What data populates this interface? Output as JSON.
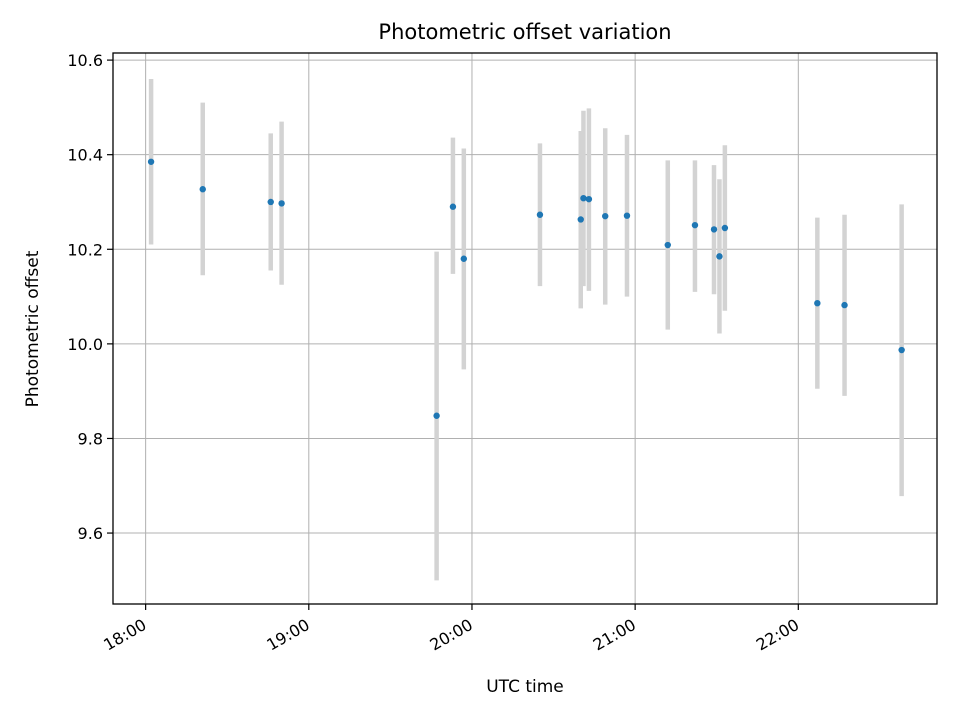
{
  "chart_data": {
    "type": "scatter",
    "title": "Photometric offset variation",
    "xlabel": "UTC time",
    "ylabel": "Photometric offset",
    "x_axis_kind": "time",
    "xlim": [
      "17:48",
      "22:51"
    ],
    "ylim": [
      9.45,
      10.615
    ],
    "xticks": [
      "18:00",
      "19:00",
      "20:00",
      "21:00",
      "22:00"
    ],
    "yticks": [
      "9.6",
      "9.8",
      "10.0",
      "10.2",
      "10.4",
      "10.6"
    ],
    "grid": true,
    "point_color": "#1f77b4",
    "errorbar_color": "#d3d3d3",
    "points": [
      {
        "x": "18:02",
        "y": 10.385,
        "ylow": 10.21,
        "yhigh": 10.56
      },
      {
        "x": "18:21",
        "y": 10.327,
        "ylow": 10.145,
        "yhigh": 10.51
      },
      {
        "x": "18:46",
        "y": 10.3,
        "ylow": 10.155,
        "yhigh": 10.445
      },
      {
        "x": "18:50",
        "y": 10.297,
        "ylow": 10.125,
        "yhigh": 10.47
      },
      {
        "x": "19:47",
        "y": 9.848,
        "ylow": 9.5,
        "yhigh": 10.195
      },
      {
        "x": "19:53",
        "y": 10.29,
        "ylow": 10.148,
        "yhigh": 10.436
      },
      {
        "x": "19:57",
        "y": 10.18,
        "ylow": 9.946,
        "yhigh": 10.413
      },
      {
        "x": "20:25",
        "y": 10.273,
        "ylow": 10.122,
        "yhigh": 10.424
      },
      {
        "x": "20:40",
        "y": 10.263,
        "ylow": 10.075,
        "yhigh": 10.45
      },
      {
        "x": "20:41",
        "y": 10.308,
        "ylow": 10.122,
        "yhigh": 10.493
      },
      {
        "x": "20:43",
        "y": 10.306,
        "ylow": 10.112,
        "yhigh": 10.498
      },
      {
        "x": "20:49",
        "y": 10.27,
        "ylow": 10.083,
        "yhigh": 10.456
      },
      {
        "x": "20:57",
        "y": 10.271,
        "ylow": 10.1,
        "yhigh": 10.442
      },
      {
        "x": "21:12",
        "y": 10.209,
        "ylow": 10.03,
        "yhigh": 10.388
      },
      {
        "x": "21:22",
        "y": 10.251,
        "ylow": 10.11,
        "yhigh": 10.388
      },
      {
        "x": "21:29",
        "y": 10.242,
        "ylow": 10.105,
        "yhigh": 10.378
      },
      {
        "x": "21:31",
        "y": 10.185,
        "ylow": 10.022,
        "yhigh": 10.348
      },
      {
        "x": "21:33",
        "y": 10.245,
        "ylow": 10.07,
        "yhigh": 10.42
      },
      {
        "x": "22:07",
        "y": 10.086,
        "ylow": 9.905,
        "yhigh": 10.267
      },
      {
        "x": "22:17",
        "y": 10.082,
        "ylow": 9.89,
        "yhigh": 10.273
      },
      {
        "x": "22:38",
        "y": 9.987,
        "ylow": 9.678,
        "yhigh": 10.295
      }
    ]
  }
}
